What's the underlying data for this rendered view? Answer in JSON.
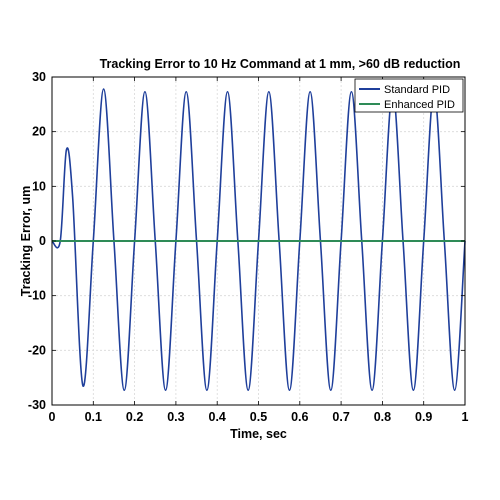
{
  "chart_data": {
    "type": "line",
    "title": "Tracking Error to 10 Hz Command at 1 mm, >60 dB reduction",
    "xlabel": "Time, sec",
    "ylabel": "Tracking Error, um",
    "xlim": [
      0,
      1
    ],
    "ylim": [
      -30,
      30
    ],
    "xticks": [
      "0",
      "0.1",
      "0.2",
      "0.3",
      "0.4",
      "0.5",
      "0.6",
      "0.7",
      "0.8",
      "0.9",
      "1"
    ],
    "yticks": [
      "30",
      "20",
      "10",
      "0",
      "-10",
      "-20",
      "-30"
    ],
    "grid": true,
    "legend_position": "top-right",
    "series": [
      {
        "name": "Standard PID",
        "color": "#1f3f9b",
        "x": [
          0,
          0.02,
          0.035,
          0.05,
          0.075,
          0.1,
          0.125,
          0.15,
          0.175,
          0.2,
          0.225,
          0.25,
          0.275,
          0.3,
          0.325,
          0.35,
          0.375,
          0.4,
          0.425,
          0.45,
          0.475,
          0.5,
          0.525,
          0.55,
          0.575,
          0.6,
          0.625,
          0.65,
          0.675,
          0.7,
          0.725,
          0.75,
          0.775,
          0.8,
          0.825,
          0.85,
          0.875,
          0.9,
          0.925,
          0.95,
          0.975,
          1.0
        ],
        "y": [
          0,
          0,
          16.7,
          8,
          -26.5,
          0,
          27.8,
          0,
          -27.3,
          0,
          27.3,
          0,
          -27.3,
          0,
          27.3,
          0,
          -27.3,
          0,
          27.3,
          0,
          -27.3,
          0,
          27.3,
          0,
          -27.3,
          0,
          27.3,
          0,
          -27.3,
          0,
          27.3,
          0,
          -27.3,
          0,
          27.3,
          0,
          -27.3,
          0,
          27.3,
          0,
          -27.3,
          0
        ]
      },
      {
        "name": "Enhanced PID",
        "color": "#2e8b57",
        "x": [
          0,
          1
        ],
        "y": [
          0,
          0
        ]
      }
    ]
  }
}
